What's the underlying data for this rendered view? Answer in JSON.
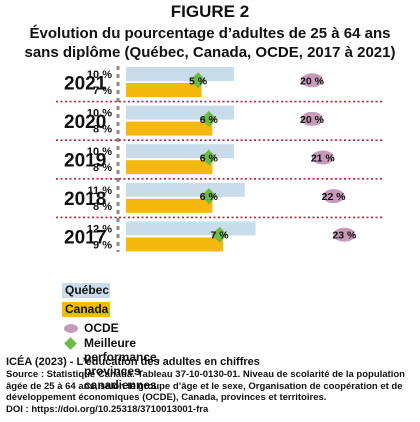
{
  "figure_label": "FIGURE 2",
  "title_line1": "Évolution du pourcentage d’adultes de 25 à 64 ans",
  "title_line2": "sans diplôme (Québec, Canada, OCDE, 2017 à 2021)",
  "colors": {
    "quebec": "#c9dcec",
    "canada": "#f5b80f",
    "ocde": "#c69ab9",
    "best": "#6dbb45",
    "separator": "#c0202e",
    "axis": "#8a8a8a"
  },
  "legend": {
    "quebec": "Québec",
    "canada": "Canada",
    "ocde": "OCDE",
    "best": "Meilleure performance, provinces canadiennes"
  },
  "source": {
    "title": "ICÉA (2023) - L’éducation des adultes en chiffres",
    "line1": "Source : Statistique Canada. Tableau 37-10-0130-01. Niveau de scolarité de la population",
    "line2": "âgée de 25 à 64 ans, selon le groupe d’âge et le sexe, Organisation de coopération et de",
    "line3": "développement économiques (OCDE), Canada, provinces et territoires.",
    "line4": "DOI : https://doi.org/10.25318/3710013001-fra"
  },
  "chart_data": {
    "type": "bar",
    "orientation": "horizontal",
    "categories": [
      "2021",
      "2020",
      "2019",
      "2018",
      "2017"
    ],
    "series": [
      {
        "name": "Québec",
        "values": [
          10,
          10,
          10,
          11,
          12
        ],
        "labels": [
          "10 %",
          "10 %",
          "10 %",
          "11 %",
          "12 %"
        ]
      },
      {
        "name": "Canada",
        "values": [
          7,
          8,
          8,
          8,
          9
        ],
        "labels": [
          "7 %",
          "8 %",
          "8 %",
          "8 %",
          "9 %"
        ]
      },
      {
        "name": "OCDE",
        "values": [
          20,
          20,
          21,
          22,
          23
        ],
        "labels": [
          "20 %",
          "20 %",
          "21 %",
          "22 %",
          "23 %"
        ]
      },
      {
        "name": "Meilleure performance, provinces canadiennes",
        "values": [
          5,
          6,
          6,
          6,
          7
        ],
        "labels": [
          "5 %",
          "6 %",
          "6 %",
          "6 %",
          "7 %"
        ]
      }
    ],
    "xlim": [
      0,
      25
    ]
  }
}
